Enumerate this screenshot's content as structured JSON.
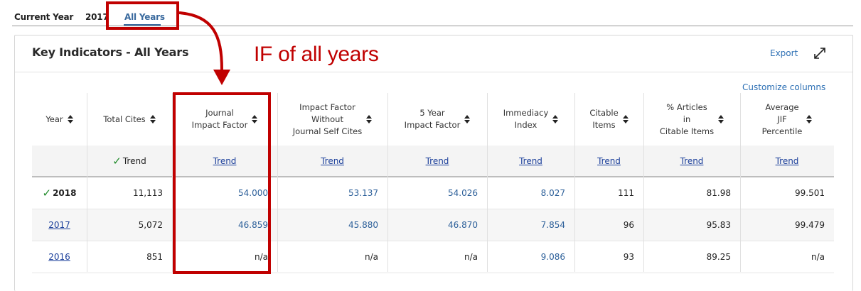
{
  "tabs": [
    {
      "label": "Current Year"
    },
    {
      "label": "2017"
    },
    {
      "label": "All Years",
      "active": true
    }
  ],
  "card": {
    "title": "Key Indicators - All Years",
    "export_label": "Export",
    "customize_label": "Customize columns"
  },
  "columns": [
    {
      "label": "Year"
    },
    {
      "label": "Total Cites"
    },
    {
      "label": "Journal\nImpact Factor"
    },
    {
      "label": "Impact Factor\nWithout\nJournal Self Cites"
    },
    {
      "label": "5 Year\nImpact Factor"
    },
    {
      "label": "Immediacy\nIndex"
    },
    {
      "label": "Citable\nItems"
    },
    {
      "label": "% Articles\nin\nCitable Items"
    },
    {
      "label": "Average\nJIF\nPercentile"
    }
  ],
  "trend_label": "Trend",
  "rows": [
    {
      "year": "2018",
      "current": true,
      "cells": [
        "11,113",
        "54.000",
        "53.137",
        "54.026",
        "8.027",
        "111",
        "81.98",
        "99.501"
      ]
    },
    {
      "year": "2017",
      "current": false,
      "cells": [
        "5,072",
        "46.859",
        "45.880",
        "46.870",
        "7.854",
        "96",
        "95.83",
        "99.479"
      ]
    },
    {
      "year": "2016",
      "current": false,
      "cells": [
        "851",
        "n/a",
        "n/a",
        "n/a",
        "9.086",
        "93",
        "89.25",
        "n/a"
      ]
    }
  ],
  "annotation": {
    "text": "IF of all years",
    "color": "#c00000"
  },
  "colors": {
    "accent": "#3a6a9e",
    "link": "#1a3e9a",
    "value_blue": "#2c5f99",
    "check_green": "#1f8a2a"
  }
}
